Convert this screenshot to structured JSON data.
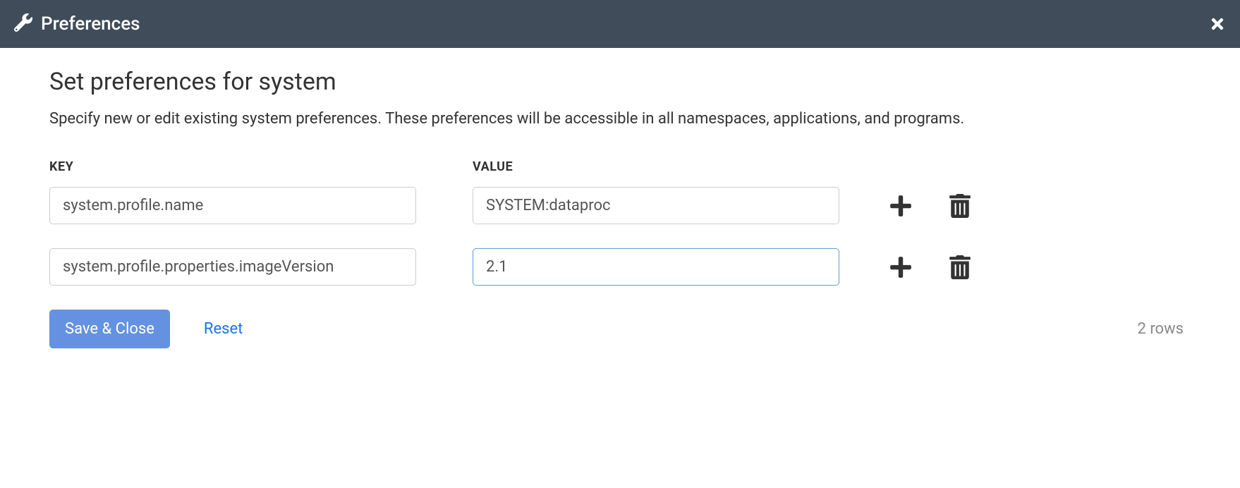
{
  "header": {
    "title": "Preferences"
  },
  "page": {
    "title": "Set preferences for system",
    "description": "Specify new or edit existing system preferences. These preferences will be accessible in all namespaces, applications, and programs."
  },
  "table": {
    "key_header": "KEY",
    "value_header": "VALUE",
    "rows": [
      {
        "key": "system.profile.name",
        "value": "SYSTEM:dataproc",
        "focused": false
      },
      {
        "key": "system.profile.properties.imageVersion",
        "value": "2.1",
        "focused": true
      }
    ]
  },
  "footer": {
    "save_label": "Save & Close",
    "reset_label": "Reset",
    "row_count": "2 rows"
  },
  "colors": {
    "header_bg": "#414c5a",
    "header_text": "#ffffff",
    "body_text": "#333333",
    "input_border": "#cccccc",
    "input_focus_border": "#5a9fd4",
    "save_button_bg": "#6492e0",
    "link_color": "#1a73e8",
    "muted_text": "#888888",
    "icon_color": "#333333"
  }
}
